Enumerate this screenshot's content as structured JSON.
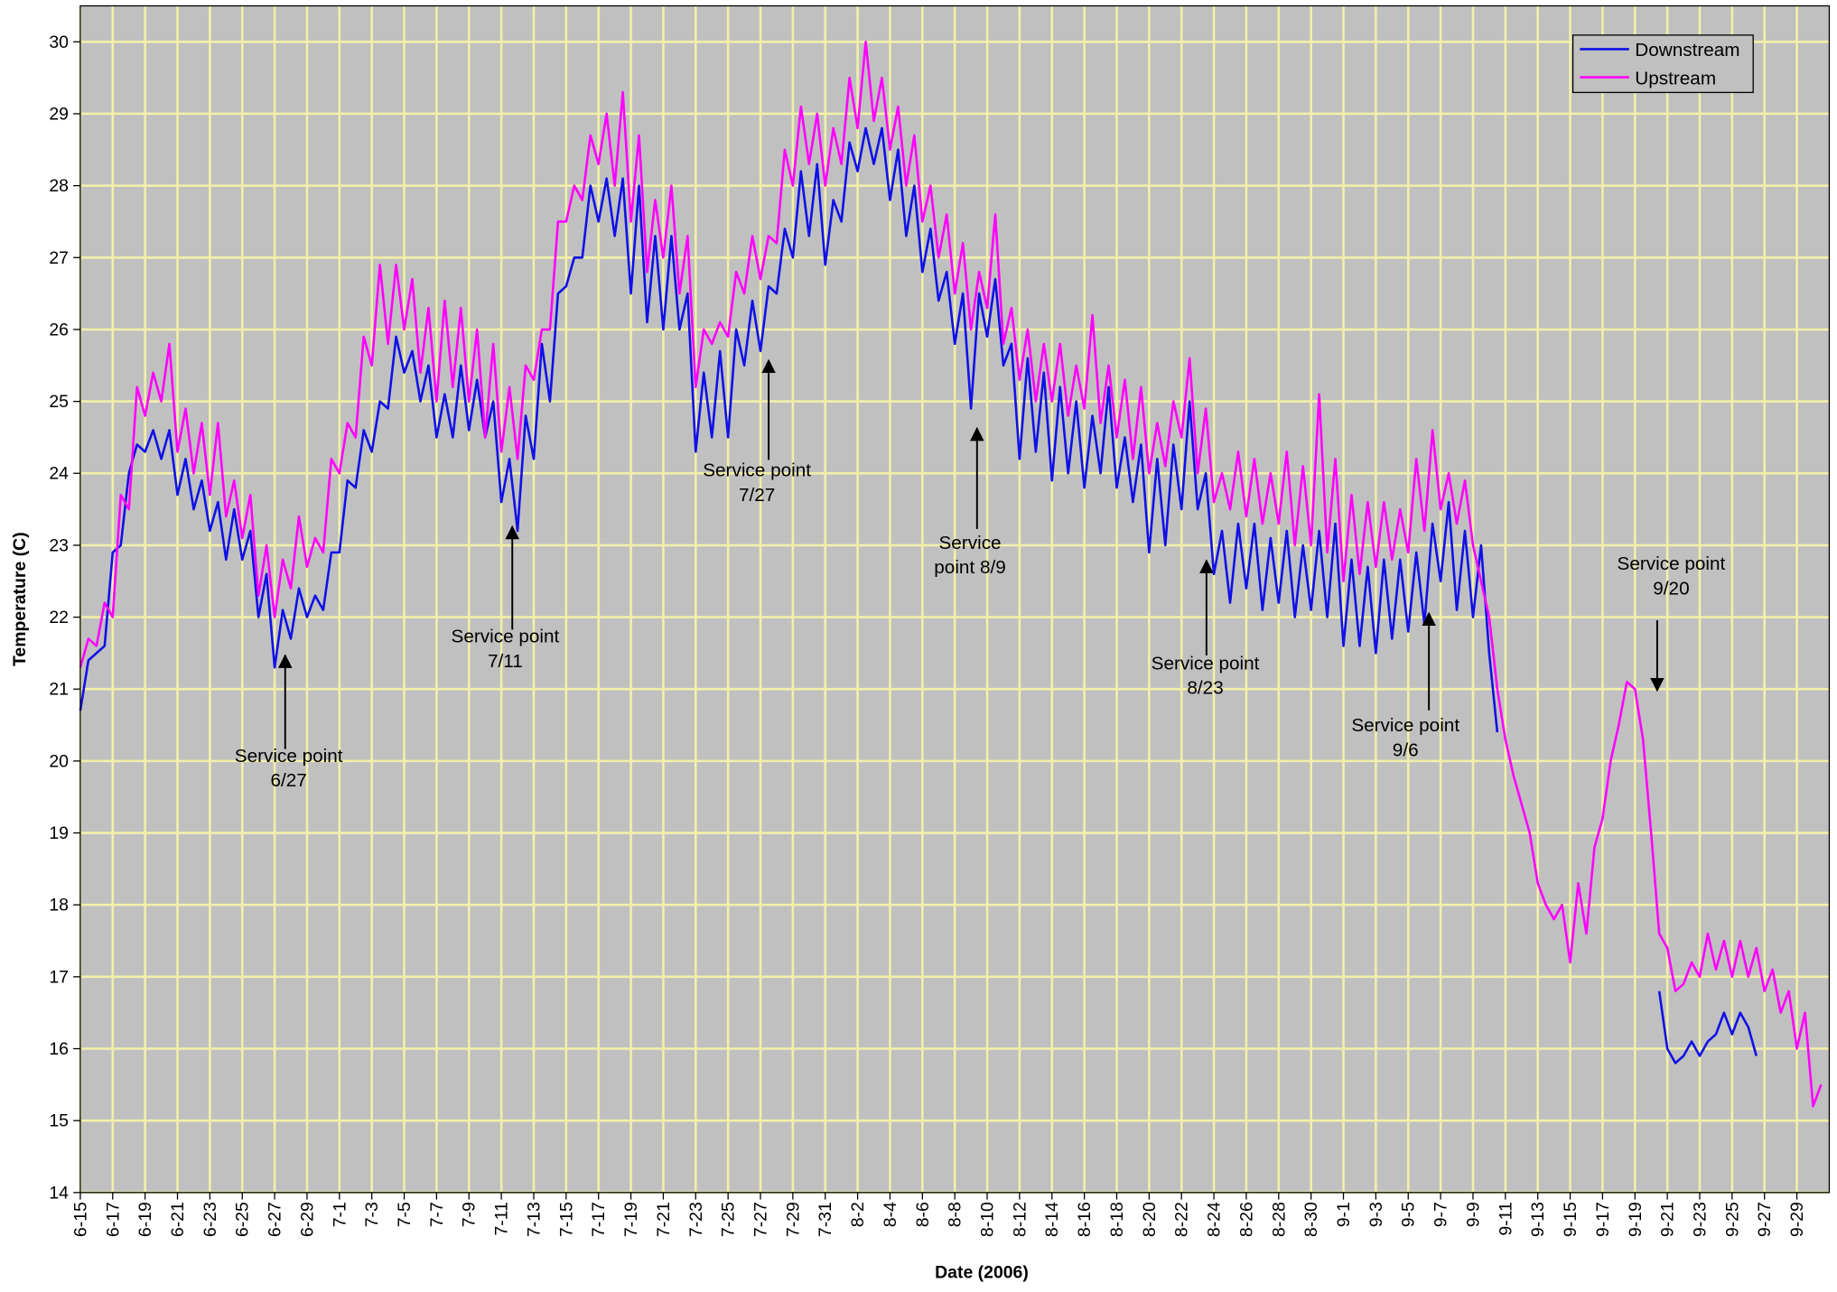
{
  "chart_data": {
    "type": "line",
    "xlabel": "Date (2006)",
    "ylabel": "Temperature (C)",
    "ylim": [
      14,
      30.5
    ],
    "yticks": [
      14,
      15,
      16,
      17,
      18,
      19,
      20,
      21,
      22,
      23,
      24,
      25,
      26,
      27,
      28,
      29,
      30
    ],
    "grid": true,
    "legend": "upper right",
    "background": "#c0c0c0",
    "grid_color": "#f2f0a8",
    "categories": [
      "6-15",
      null,
      null,
      null,
      "6-17",
      null,
      null,
      null,
      "6-19",
      null,
      null,
      null,
      "6-21",
      null,
      null,
      null,
      "6-23",
      null,
      null,
      null,
      "6-25",
      null,
      null,
      null,
      "6-27",
      null,
      null,
      null,
      "6-29",
      null,
      null,
      null,
      "7-1",
      null,
      null,
      null,
      "7-3",
      null,
      null,
      null,
      "7-5",
      null,
      null,
      null,
      "7-7",
      null,
      null,
      null,
      "7-9",
      null,
      null,
      null,
      "7-11",
      null,
      null,
      null,
      "7-13",
      null,
      null,
      null,
      "7-15",
      null,
      null,
      null,
      "7-17",
      null,
      null,
      null,
      "7-19",
      null,
      null,
      null,
      "7-21",
      null,
      null,
      null,
      "7-23",
      null,
      null,
      null,
      "7-25",
      null,
      null,
      null,
      "7-27",
      null,
      null,
      null,
      "7-29",
      null,
      null,
      null,
      "7-31",
      null,
      null,
      null,
      "8-2",
      null,
      null,
      null,
      "8-4",
      null,
      null,
      null,
      "8-6",
      null,
      null,
      null,
      "8-8",
      null,
      null,
      null,
      "8-10",
      null,
      null,
      null,
      "8-12",
      null,
      null,
      null,
      "8-14",
      null,
      null,
      null,
      "8-16",
      null,
      null,
      null,
      "8-18",
      null,
      null,
      null,
      "8-20",
      null,
      null,
      null,
      "8-22",
      null,
      null,
      null,
      "8-24",
      null,
      null,
      null,
      "8-26",
      null,
      null,
      null,
      "8-28",
      null,
      null,
      null,
      "8-30",
      null,
      null,
      null,
      "9-1",
      null,
      null,
      null,
      "9-3",
      null,
      null,
      null,
      "9-5",
      null,
      null,
      null,
      "9-7",
      null,
      null,
      null,
      "9-9",
      null,
      null,
      null,
      "9-11",
      null,
      null,
      null,
      "9-13",
      null,
      null,
      null,
      "9-15",
      null,
      null,
      null,
      "9-17",
      null,
      null,
      null,
      "9-19",
      null,
      null,
      null,
      "9-21",
      null,
      null,
      null,
      "9-23",
      null,
      null,
      null,
      "9-25",
      null,
      null,
      null,
      "9-27",
      null,
      null,
      null,
      "9-29",
      null,
      null,
      null
    ],
    "series": [
      {
        "name": "Downstream",
        "color": "#1010e8",
        "values": [
          20.7,
          21.4,
          21.5,
          21.6,
          22.9,
          23.0,
          24.0,
          24.4,
          24.3,
          24.6,
          24.2,
          24.6,
          23.7,
          24.2,
          23.5,
          23.9,
          23.2,
          23.6,
          22.8,
          23.5,
          22.8,
          23.2,
          22.0,
          22.6,
          21.3,
          22.1,
          21.7,
          22.4,
          22.0,
          22.3,
          22.1,
          22.9,
          22.9,
          23.9,
          23.8,
          24.6,
          24.3,
          25.0,
          24.9,
          25.9,
          25.4,
          25.7,
          25.0,
          25.5,
          24.5,
          25.1,
          24.5,
          25.5,
          24.6,
          25.3,
          24.5,
          25.0,
          23.6,
          24.2,
          23.2,
          24.8,
          24.2,
          25.8,
          25.0,
          26.5,
          26.6,
          27.0,
          27.0,
          28.0,
          27.5,
          28.1,
          27.3,
          28.1,
          26.5,
          28.0,
          26.1,
          27.3,
          26.0,
          27.3,
          26.0,
          26.5,
          24.3,
          25.4,
          24.5,
          25.7,
          24.5,
          26.0,
          25.5,
          26.4,
          25.7,
          26.6,
          26.5,
          27.4,
          27.0,
          28.2,
          27.3,
          28.3,
          26.9,
          27.8,
          27.5,
          28.6,
          28.2,
          28.8,
          28.3,
          28.8,
          27.8,
          28.5,
          27.3,
          28.0,
          26.8,
          27.4,
          26.4,
          26.8,
          25.8,
          26.5,
          24.9,
          26.5,
          25.9,
          26.7,
          25.5,
          25.8,
          24.2,
          25.6,
          24.3,
          25.4,
          23.9,
          25.2,
          24.0,
          25.0,
          23.8,
          24.8,
          24.0,
          25.2,
          23.8,
          24.5,
          23.6,
          24.4,
          22.9,
          24.2,
          23.0,
          24.4,
          23.5,
          25.0,
          23.5,
          24.0,
          22.6,
          23.2,
          22.2,
          23.3,
          22.4,
          23.3,
          22.1,
          23.1,
          22.2,
          23.2,
          22.0,
          23.0,
          22.1,
          23.2,
          22.0,
          23.3,
          21.6,
          22.8,
          21.6,
          22.7,
          21.5,
          22.8,
          21.7,
          22.8,
          21.8,
          22.9,
          21.9,
          23.3,
          22.5,
          23.6,
          22.1,
          23.2,
          22.0,
          23.0,
          21.5,
          20.4,
          null,
          null,
          null,
          null,
          null,
          null,
          null,
          null,
          null,
          null,
          null,
          null,
          null,
          null,
          null,
          null,
          null,
          null,
          null,
          16.8,
          16.0,
          15.8,
          15.9,
          16.1,
          15.9,
          16.1,
          16.2,
          16.5,
          16.2,
          16.5,
          16.3,
          15.9,
          null,
          null,
          null,
          null,
          null,
          null,
          null,
          null
        ]
      },
      {
        "name": "Upstream",
        "color": "#ff00ff",
        "values": [
          21.3,
          21.7,
          21.6,
          22.2,
          22.0,
          23.7,
          23.5,
          25.2,
          24.8,
          25.4,
          25.0,
          25.8,
          24.3,
          24.9,
          24.0,
          24.7,
          23.7,
          24.7,
          23.4,
          23.9,
          23.1,
          23.7,
          22.3,
          23.0,
          22.0,
          22.8,
          22.4,
          23.4,
          22.7,
          23.1,
          22.9,
          24.2,
          24.0,
          24.7,
          24.5,
          25.9,
          25.5,
          26.9,
          25.8,
          26.9,
          26.0,
          26.7,
          25.4,
          26.3,
          25.0,
          26.4,
          25.2,
          26.3,
          25.0,
          26.0,
          24.5,
          25.8,
          24.3,
          25.2,
          24.2,
          25.5,
          25.3,
          26.0,
          26.0,
          27.5,
          27.5,
          28.0,
          27.8,
          28.7,
          28.3,
          29.0,
          28.0,
          29.3,
          27.5,
          28.7,
          26.8,
          27.8,
          27.0,
          28.0,
          26.5,
          27.3,
          25.2,
          26.0,
          25.8,
          26.1,
          25.9,
          26.8,
          26.5,
          27.3,
          26.7,
          27.3,
          27.2,
          28.5,
          28.0,
          29.1,
          28.3,
          29.0,
          28.0,
          28.8,
          28.3,
          29.5,
          28.8,
          30.0,
          28.9,
          29.5,
          28.5,
          29.1,
          28.0,
          28.7,
          27.5,
          28.0,
          27.0,
          27.6,
          26.5,
          27.2,
          26.0,
          26.8,
          26.3,
          27.6,
          25.8,
          26.3,
          25.3,
          26.0,
          25.0,
          25.8,
          25.0,
          25.8,
          24.8,
          25.5,
          24.9,
          26.2,
          24.7,
          25.5,
          24.5,
          25.3,
          24.2,
          25.2,
          24.0,
          24.7,
          24.1,
          25.0,
          24.5,
          25.6,
          24.0,
          24.9,
          23.6,
          24.0,
          23.5,
          24.3,
          23.4,
          24.2,
          23.3,
          24.0,
          23.3,
          24.3,
          23.0,
          24.1,
          23.0,
          25.1,
          22.9,
          24.2,
          22.5,
          23.7,
          22.6,
          23.6,
          22.7,
          23.6,
          22.8,
          23.5,
          22.9,
          24.2,
          23.2,
          24.6,
          23.5,
          24.0,
          23.3,
          23.9,
          23.0,
          22.5,
          22.0,
          21.0,
          20.3,
          19.8,
          19.4,
          19.0,
          18.3,
          18.0,
          17.8,
          18.0,
          17.2,
          18.3,
          17.6,
          18.8,
          19.2,
          20.0,
          20.5,
          21.1,
          21.0,
          20.3,
          19.0,
          17.6,
          17.4,
          16.8,
          16.9,
          17.2,
          17.0,
          17.6,
          17.1,
          17.5,
          17.0,
          17.5,
          17.0,
          17.4,
          16.8,
          17.1,
          16.5,
          16.8,
          16.0,
          16.5,
          15.2,
          15.5
        ]
      }
    ],
    "annotations": [
      {
        "text": [
          "Service point",
          "6/27"
        ]
      },
      {
        "text": [
          "Service point",
          "7/11"
        ]
      },
      {
        "text": [
          "Service point",
          "7/27"
        ]
      },
      {
        "text": [
          "Service",
          "point 8/9"
        ]
      },
      {
        "text": [
          "Service point",
          "8/23"
        ]
      },
      {
        "text": [
          "Service point",
          "9/6"
        ]
      },
      {
        "text": [
          "Service point",
          "9/20"
        ]
      }
    ]
  }
}
